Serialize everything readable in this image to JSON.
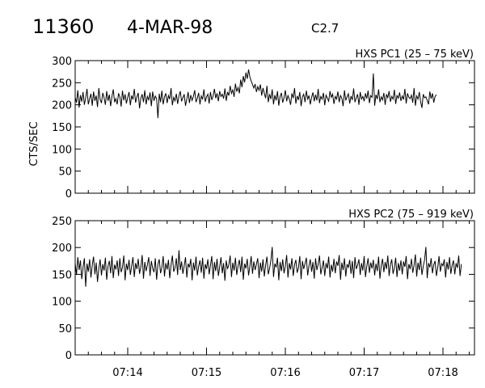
{
  "header": {
    "flare_id": "11360",
    "date": "4-MAR-98",
    "goes_class": "C2.7"
  },
  "chart_data": [
    {
      "type": "line",
      "title": "HXS PC1 (25 – 75 keV)",
      "xlabel": "",
      "ylabel": "CTS/SEC",
      "xlim": [
        "07:13:20",
        "07:18:24"
      ],
      "ylim": [
        0,
        300
      ],
      "yticks": [
        0,
        50,
        100,
        150,
        200,
        250,
        300
      ],
      "xticks": [
        "07:14",
        "07:15",
        "07:16",
        "07:17",
        "07:18"
      ],
      "show_xtick_labels": false,
      "series": [
        {
          "interval_s": 1,
          "start": "07:13:20",
          "values": [
            217,
            205,
            233,
            194,
            222,
            207,
            229,
            200,
            216,
            236,
            201,
            214,
            225,
            198,
            230,
            209,
            221,
            195,
            238,
            212,
            204,
            227,
            216,
            200,
            231,
            209,
            223,
            197,
            219,
            235,
            206,
            214,
            201,
            226,
            218,
            196,
            232,
            210,
            224,
            203,
            217,
            229,
            199,
            221,
            212,
            236,
            205,
            218,
            227,
            192,
            215,
            224,
            206,
            233,
            201,
            219,
            211,
            228,
            197,
            230,
            209,
            220,
            214,
            170,
            225,
            206,
            232,
            201,
            218,
            226,
            204,
            221,
            213,
            238,
            199,
            217,
            209,
            225,
            202,
            220,
            231,
            208,
            216,
            224,
            198,
            213,
            229,
            204,
            222,
            210,
            219,
            233,
            206,
            215,
            227,
            201,
            220,
            212,
            235,
            207,
            218,
            224,
            203,
            229,
            211,
            220,
            236,
            215,
            226,
            208,
            231,
            219,
            224,
            214,
            237,
            209,
            229,
            221,
            243,
            226,
            234,
            218,
            248,
            230,
            239,
            226,
            257,
            240,
            265,
            251,
            273,
            259,
            280,
            263,
            254,
            246,
            238,
            247,
            229,
            241,
            233,
            246,
            221,
            238,
            226,
            215,
            243,
            206,
            224,
            213,
            235,
            201,
            222,
            210,
            231,
            198,
            219,
            227,
            205,
            216,
            233,
            208,
            221,
            213,
            200,
            226,
            215,
            238,
            203,
            220,
            211,
            229,
            197,
            218,
            224,
            206,
            232,
            213,
            221,
            201,
            217,
            228,
            208,
            223,
            210,
            236,
            204,
            219,
            213,
            227,
            199,
            222,
            215,
            208,
            231,
            217,
            224,
            202,
            219,
            213,
            230,
            206,
            221,
            215,
            197,
            233,
            210,
            218,
            225,
            203,
            220,
            211,
            237,
            206,
            216,
            224,
            200,
            229,
            213,
            219,
            208,
            226,
            214,
            232,
            204,
            221,
            217,
            271,
            198,
            223,
            213,
            235,
            206,
            218,
            211,
            227,
            200,
            224,
            216,
            231,
            207,
            219,
            213,
            234,
            202,
            221,
            215,
            228,
            209,
            220,
            212,
            236,
            203,
            226,
            217,
            214,
            222,
            205,
            238,
            198,
            220,
            213,
            229,
            207,
            193,
            224,
            216,
            218,
            210,
            201,
            230,
            214,
            226,
            205,
            219,
            223
          ]
        }
      ]
    },
    {
      "type": "line",
      "title": "HXS PC2 (75 – 919 keV)",
      "xlabel": "",
      "ylabel": "",
      "xlim": [
        "07:13:20",
        "07:18:24"
      ],
      "ylim": [
        0,
        250
      ],
      "yticks": [
        0,
        50,
        100,
        150,
        200,
        250
      ],
      "xticks": [
        "07:14",
        "07:15",
        "07:16",
        "07:17",
        "07:18"
      ],
      "show_xtick_labels": true,
      "series": [
        {
          "interval_s": 1,
          "start": "07:13:20",
          "values": [
            171,
            149,
            182,
            158,
            176,
            141,
            163,
            180,
            127,
            170,
            155,
            178,
            144,
            167,
            183,
            150,
            172,
            136,
            161,
            178,
            148,
            169,
            157,
            181,
            140,
            165,
            175,
            152,
            184,
            143,
            168,
            159,
            176,
            147,
            180,
            154,
            163,
            185,
            139,
            170,
            158,
            177,
            149,
            166,
            182,
            145,
            171,
            160,
            179,
            151,
            164,
            186,
            142,
            173,
            156,
            168,
            182,
            147,
            175,
            161,
            154,
            180,
            140,
            169,
            178,
            152,
            163,
            184,
            146,
            171,
            159,
            177,
            143,
            168,
            185,
            155,
            162,
            180,
            149,
            195,
            158,
            174,
            151,
            166,
            182,
            144,
            170,
            163,
            179,
            139,
            172,
            157,
            183,
            148,
            165,
            176,
            153,
            181,
            142,
            169,
            160,
            178,
            150,
            167,
            184,
            141,
            173,
            156,
            179,
            147,
            164,
            182,
            152,
            171,
            138,
            176,
            160,
            168,
            185,
            145,
            172,
            157,
            181,
            149,
            166,
            177,
            154,
            183,
            140,
            170,
            161,
            179,
            148,
            165,
            184,
            151,
            174,
            158,
            169,
            180,
            143,
            172,
            155,
            178,
            146,
            167,
            183,
            150,
            161,
            176,
            201,
            145,
            170,
            163,
            181,
            139,
            173,
            156,
            178,
            152,
            165,
            186,
            144,
            171,
            159,
            180,
            147,
            168,
            177,
            153,
            162,
            184,
            141,
            175,
            160,
            170,
            181,
            148,
            166,
            178,
            155,
            173,
            142,
            180,
            158,
            169,
            185,
            150,
            163,
            176,
            147,
            171,
            161,
            183,
            144,
            168,
            155,
            179,
            152,
            174,
            166,
            186,
            140,
            172,
            158,
            180,
            146,
            169,
            163,
            177,
            151,
            175,
            143,
            182,
            160,
            167,
            178,
            149,
            171,
            157,
            184,
            145,
            165,
            180,
            153,
            172,
            161,
            177,
            148,
            170,
            156,
            183,
            142,
            166,
            179,
            154,
            173,
            160,
            185,
            147,
            168,
            178,
            151,
            162,
            181,
            145,
            171,
            157,
            176,
            150,
            174,
            164,
            184,
            141,
            169,
            160,
            179,
            153,
            167,
            187,
            146,
            172,
            158,
            181,
            149,
            165,
            177,
            201,
            143,
            171,
            163,
            180,
            152,
            168,
            175,
            147,
            162,
            184,
            155,
            170,
            166,
            178,
            144,
            173,
            159,
            182,
            151,
            167,
            176,
            150,
            171,
            162,
            185,
            147,
            169
          ]
        }
      ]
    }
  ]
}
